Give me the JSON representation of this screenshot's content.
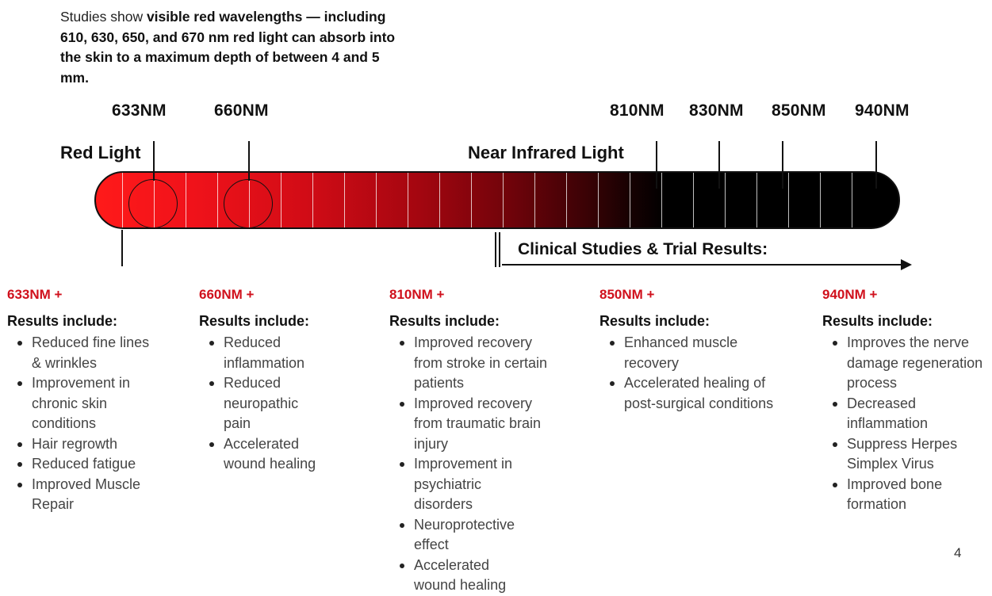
{
  "intro": {
    "prefix": "Studies show ",
    "bold": "visible red wavelengths — including 610, 630, 650, and 670 nm red light can absorb into the skin to a maximum depth of between 4 and 5 mm."
  },
  "wavelength_labels": [
    "633NM",
    "660NM",
    "810NM",
    "830NM",
    "850NM",
    "940NM"
  ],
  "regions": {
    "red": "Red Light",
    "nir": "Near Infrared Light"
  },
  "clinical_label": "Clinical Studies & Trial Results:",
  "colors": {
    "accent_red": "#d0101c",
    "bar_start": "#ff1a1a",
    "bar_end": "#000000"
  },
  "results": [
    {
      "nm": "633NM +",
      "heading": "Results include:",
      "items": [
        "Reduced fine lines & wrinkles",
        "Improvement in chronic skin conditions",
        "Hair regrowth",
        "Reduced fatigue",
        "Improved Muscle Repair"
      ]
    },
    {
      "nm": "660NM +",
      "heading": "Results include:",
      "items": [
        "Reduced inflammation",
        "Reduced neuropathic pain",
        "Accelerated wound healing"
      ]
    },
    {
      "nm": "810NM +",
      "heading": "Results include:",
      "items": [
        "Improved recovery from stroke in certain patients",
        "Improved recovery from traumatic brain injury",
        "Improvement in psychiatric disorders",
        "Neuroprotective effect",
        "Accelerated wound healing"
      ]
    },
    {
      "nm": "850NM +",
      "heading": "Results include:",
      "items": [
        "Enhanced muscle recovery",
        "Accelerated healing of post-surgical conditions"
      ]
    },
    {
      "nm": "940NM +",
      "heading": "Results include:",
      "items": [
        "Improves the nerve damage regeneration process",
        "Decreased inflammation",
        "Suppress Herpes Simplex Virus",
        "Improved bone formation"
      ]
    }
  ],
  "page_number": "4"
}
